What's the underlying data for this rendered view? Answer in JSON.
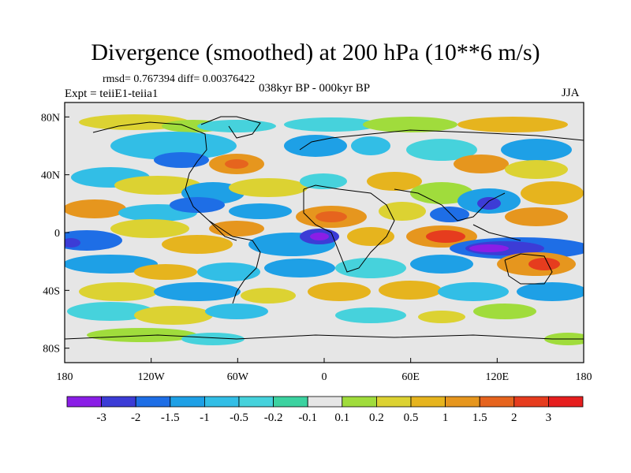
{
  "title": "Divergence (smoothed) at 200 hPa (10**6 m/s)",
  "stats": "rmsd= 0.767394 diff= 0.00376422",
  "expt": "Expt = teiiE1-teiia1",
  "period": "038kyr BP - 000kyr BP",
  "season": "JJA",
  "map": {
    "projection": "cylindrical equidistant",
    "lon_range": [
      -180,
      180
    ],
    "lat_range": [
      -90,
      90
    ],
    "lon_ticks": [
      {
        "value": -180,
        "label": "180"
      },
      {
        "value": -120,
        "label": "120W"
      },
      {
        "value": -60,
        "label": "60W"
      },
      {
        "value": 0,
        "label": "0"
      },
      {
        "value": 60,
        "label": "60E"
      },
      {
        "value": 120,
        "label": "120E"
      },
      {
        "value": 180,
        "label": "180"
      }
    ],
    "lat_ticks": [
      {
        "value": 80,
        "label": "80N"
      },
      {
        "value": 40,
        "label": "40N"
      },
      {
        "value": 0,
        "label": "0"
      },
      {
        "value": -40,
        "label": "40S"
      },
      {
        "value": -80,
        "label": "80S"
      }
    ]
  },
  "colorbar": {
    "colors": [
      "#8a1ee6",
      "#3c3cd6",
      "#1e6ee6",
      "#1ea0e6",
      "#32bee6",
      "#46d2dc",
      "#3cd2a0",
      "#e6e6e6",
      "#a0dc3c",
      "#dcd232",
      "#e6b41e",
      "#e6961e",
      "#e6641e",
      "#e63c1e",
      "#e61e1e"
    ],
    "labels": [
      "-3",
      "-2",
      "-1.5",
      "-1",
      "-0.5",
      "-0.2",
      "-0.1",
      "0.1",
      "0.2",
      "0.5",
      "1",
      "1.5",
      "2",
      "3"
    ]
  }
}
